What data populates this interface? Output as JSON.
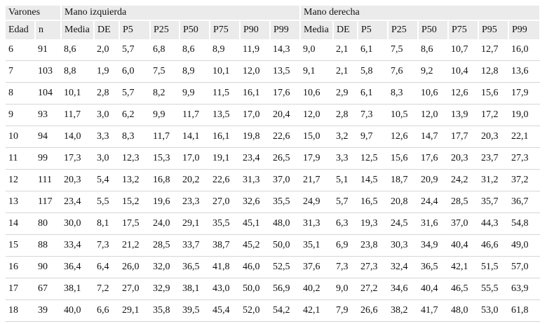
{
  "table": {
    "group_headers": [
      "Varones",
      "Mano izquierda",
      "Mano derecha"
    ],
    "column_headers": [
      "Edad",
      "n",
      "Media",
      "DE",
      "P5",
      "P25",
      "P50",
      "P75",
      "P90",
      "P99",
      "Media",
      "DE",
      "P5",
      "P25",
      "P50",
      "P75",
      "P95",
      "P99"
    ],
    "rows": [
      [
        "6",
        "91",
        "8,6",
        "2,0",
        "5,7",
        "6,8",
        "8,6",
        "8,9",
        "11,9",
        "14,3",
        "9,0",
        "2,1",
        "6,1",
        "7,5",
        "8,6",
        "10,7",
        "12,7",
        "16,0"
      ],
      [
        "7",
        "103",
        "8,8",
        "1,9",
        "6,0",
        "7,5",
        "8,9",
        "10,1",
        "12,0",
        "13,5",
        "9,1",
        "2,1",
        "5,8",
        "7,6",
        "9,2",
        "10,4",
        "12,8",
        "13,6"
      ],
      [
        "8",
        "104",
        "10,1",
        "2,8",
        "5,7",
        "8,2",
        "9,9",
        "11,5",
        "16,1",
        "17,6",
        "10,6",
        "2,9",
        "6,1",
        "8,3",
        "10,6",
        "12,6",
        "15,6",
        "17,9"
      ],
      [
        "9",
        "93",
        "11,7",
        "3,0",
        "6,2",
        "9,9",
        "11,7",
        "13,5",
        "17,0",
        "20,4",
        "12,0",
        "2,8",
        "7,3",
        "10,5",
        "12,0",
        "13,9",
        "17,2",
        "19,0"
      ],
      [
        "10",
        "94",
        "14,0",
        "3,3",
        "8,3",
        "11,7",
        "14,1",
        "16,1",
        "19,8",
        "22,6",
        "15,0",
        "3,2",
        "9,7",
        "12,6",
        "14,7",
        "17,7",
        "20,3",
        "22,1"
      ],
      [
        "11",
        "99",
        "17,3",
        "3,0",
        "12,3",
        "15,3",
        "17,0",
        "19,1",
        "23,4",
        "26,5",
        "17,9",
        "3,3",
        "12,5",
        "15,6",
        "17,6",
        "20,3",
        "23,7",
        "27,3"
      ],
      [
        "12",
        "111",
        "20,3",
        "5,4",
        "13,2",
        "16,8",
        "20,2",
        "22,6",
        "31,3",
        "37,0",
        "21,7",
        "5,1",
        "14,5",
        "18,7",
        "20,9",
        "24,2",
        "31,2",
        "37,2"
      ],
      [
        "13",
        "117",
        "23,4",
        "5,5",
        "15,2",
        "19,6",
        "23,3",
        "27,0",
        "32,6",
        "35,5",
        "24,9",
        "5,7",
        "16,5",
        "20,8",
        "24,4",
        "28,5",
        "35,7",
        "36,7"
      ],
      [
        "14",
        "80",
        "30,0",
        "8,1",
        "17,5",
        "24,0",
        "29,1",
        "35,5",
        "45,1",
        "48,0",
        "31,3",
        "6,3",
        "19,3",
        "24,5",
        "31,6",
        "37,0",
        "44,3",
        "54,8"
      ],
      [
        "15",
        "88",
        "33,4",
        "7,3",
        "21,2",
        "28,5",
        "33,7",
        "38,7",
        "45,2",
        "50,0",
        "35,1",
        "6,9",
        "23,8",
        "30,3",
        "34,9",
        "40,4",
        "46,6",
        "49,0"
      ],
      [
        "16",
        "90",
        "36,4",
        "6,4",
        "26,0",
        "32,0",
        "36,5",
        "41,8",
        "46,0",
        "52,5",
        "37,6",
        "7,3",
        "27,3",
        "32,4",
        "36,5",
        "42,1",
        "51,5",
        "57,0"
      ],
      [
        "17",
        "67",
        "38,1",
        "7,2",
        "27,0",
        "32,9",
        "38,1",
        "43,0",
        "50,0",
        "56,9",
        "40,2",
        "9,0",
        "27,2",
        "34,6",
        "40,4",
        "46,5",
        "55,5",
        "63,9"
      ],
      [
        "18",
        "39",
        "40,0",
        "6,6",
        "29,1",
        "35,8",
        "39,5",
        "45,4",
        "52,0",
        "54,2",
        "42,1",
        "7,9",
        "26,6",
        "38,2",
        "41,7",
        "48,0",
        "53,0",
        "61,8"
      ]
    ]
  }
}
